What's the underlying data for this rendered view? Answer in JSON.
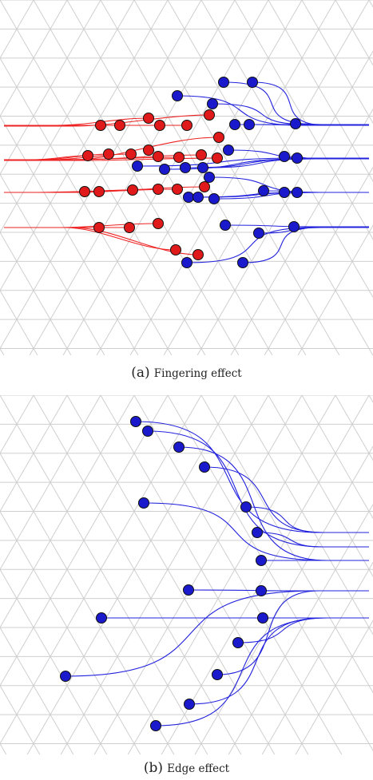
{
  "figure": {
    "panels": [
      {
        "id": "a",
        "letter": "(a)",
        "title": "Fingering effect"
      },
      {
        "id": "b",
        "letter": "(b)",
        "title": "Edge effect"
      }
    ],
    "colors": {
      "mesh": "#cfcfcf",
      "blue_agent": "#1a1acc",
      "red_agent": "#e01a1a",
      "blue_path": "#2222dd",
      "red_path": "#ee2222",
      "outline": "#111111"
    }
  }
}
